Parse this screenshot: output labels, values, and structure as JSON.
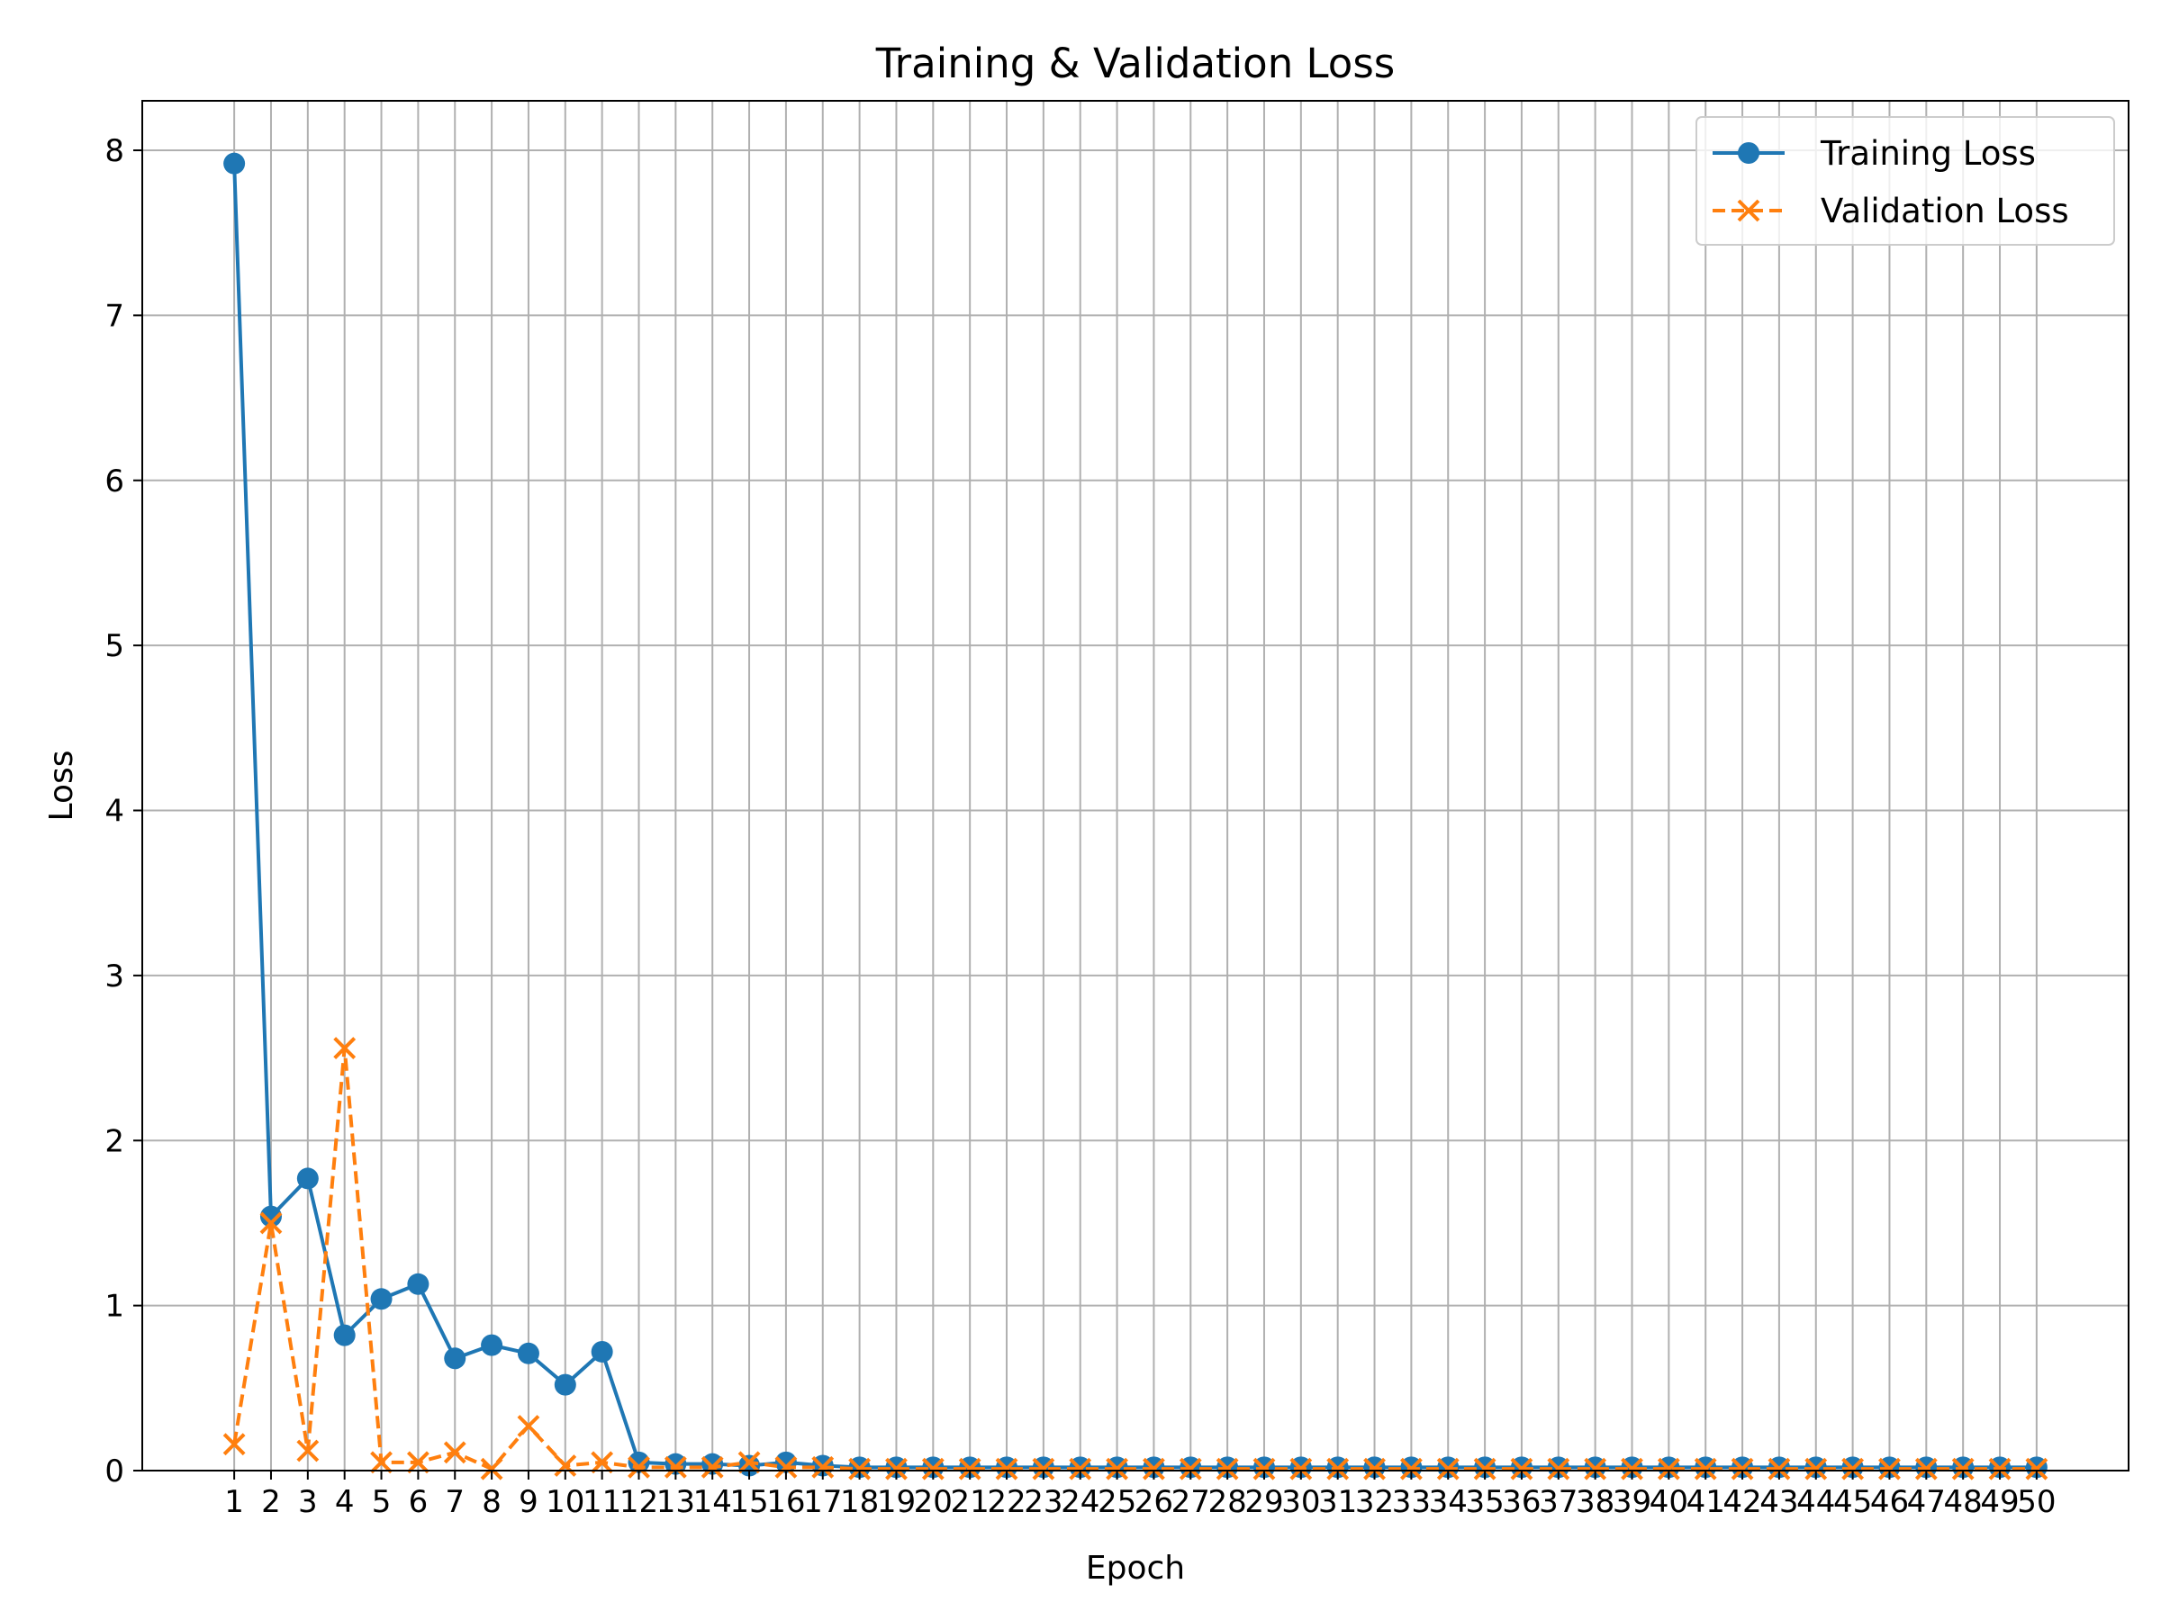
{
  "chart_data": {
    "type": "line",
    "title": "Training & Validation Loss",
    "xlabel": "Epoch",
    "ylabel": "Loss",
    "x": [
      1,
      2,
      3,
      4,
      5,
      6,
      7,
      8,
      9,
      10,
      11,
      12,
      13,
      14,
      15,
      16,
      17,
      18,
      19,
      20,
      21,
      22,
      23,
      24,
      25,
      26,
      27,
      28,
      29,
      30,
      31,
      32,
      33,
      34,
      35,
      36,
      37,
      38,
      39,
      40,
      41,
      42,
      43,
      44,
      45,
      46,
      47,
      48,
      49,
      50
    ],
    "xlim": [
      -1.5,
      52.5
    ],
    "ylim": [
      0,
      8.3
    ],
    "yticks": [
      0,
      1,
      2,
      3,
      4,
      5,
      6,
      7,
      8
    ],
    "grid": true,
    "legend_position": "top-right",
    "series": [
      {
        "name": "Training Loss",
        "color": "#1f77b4",
        "line_style": "solid",
        "marker": "circle",
        "values": [
          7.92,
          1.54,
          1.77,
          0.82,
          1.04,
          1.13,
          0.68,
          0.76,
          0.71,
          0.52,
          0.72,
          0.05,
          0.04,
          0.04,
          0.03,
          0.05,
          0.03,
          0.02,
          0.02,
          0.02,
          0.02,
          0.02,
          0.02,
          0.02,
          0.02,
          0.02,
          0.02,
          0.02,
          0.02,
          0.02,
          0.02,
          0.02,
          0.02,
          0.02,
          0.02,
          0.02,
          0.02,
          0.02,
          0.02,
          0.02,
          0.02,
          0.02,
          0.02,
          0.02,
          0.02,
          0.02,
          0.02,
          0.02,
          0.02,
          0.02
        ]
      },
      {
        "name": "Validation Loss",
        "color": "#ff7f0e",
        "line_style": "dashed",
        "marker": "x",
        "values": [
          0.16,
          1.5,
          0.12,
          2.56,
          0.05,
          0.05,
          0.11,
          0.01,
          0.27,
          0.03,
          0.05,
          0.02,
          0.02,
          0.02,
          0.05,
          0.02,
          0.02,
          0.01,
          0.01,
          0.01,
          0.01,
          0.01,
          0.01,
          0.01,
          0.01,
          0.01,
          0.01,
          0.01,
          0.01,
          0.01,
          0.01,
          0.01,
          0.01,
          0.01,
          0.01,
          0.01,
          0.01,
          0.01,
          0.01,
          0.01,
          0.01,
          0.01,
          0.01,
          0.01,
          0.01,
          0.01,
          0.01,
          0.01,
          0.01,
          0.01
        ]
      }
    ]
  }
}
